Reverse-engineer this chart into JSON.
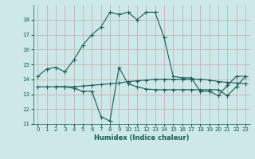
{
  "xlabel": "Humidex (Indice chaleur)",
  "bg_color": "#cce8e8",
  "grid_color": "#aacccc",
  "line_color": "#1a5c50",
  "xlim": [
    -0.5,
    23.5
  ],
  "ylim": [
    11,
    19
  ],
  "yticks": [
    11,
    12,
    13,
    14,
    15,
    16,
    17,
    18
  ],
  "xticks": [
    0,
    1,
    2,
    3,
    4,
    5,
    6,
    7,
    8,
    9,
    10,
    11,
    12,
    13,
    14,
    15,
    16,
    17,
    18,
    19,
    20,
    21,
    22,
    23
  ],
  "series1_x": [
    0,
    1,
    2,
    3,
    4,
    5,
    6,
    7,
    8,
    9,
    10,
    11,
    12,
    13,
    14,
    15,
    16,
    17,
    18,
    19,
    20,
    21,
    22,
    23
  ],
  "series1_y": [
    14.2,
    14.7,
    14.8,
    14.5,
    15.3,
    16.3,
    17.0,
    17.5,
    18.5,
    18.35,
    18.5,
    18.0,
    18.5,
    18.5,
    16.8,
    14.2,
    14.1,
    14.1,
    13.2,
    13.2,
    12.9,
    13.6,
    14.2,
    14.2
  ],
  "series2_x": [
    0,
    1,
    2,
    3,
    4,
    5,
    6,
    7,
    8,
    9,
    10,
    11,
    12,
    13,
    14,
    15,
    16,
    17,
    18,
    19,
    20,
    21,
    22,
    23
  ],
  "series2_y": [
    13.5,
    13.5,
    13.5,
    13.5,
    13.5,
    13.55,
    13.6,
    13.65,
    13.7,
    13.75,
    13.85,
    13.9,
    13.95,
    14.0,
    14.0,
    14.0,
    14.0,
    14.0,
    14.0,
    13.95,
    13.85,
    13.8,
    13.75,
    13.7
  ],
  "series3_x": [
    2,
    3,
    4,
    5,
    6,
    7,
    8,
    9,
    10,
    11,
    12,
    13,
    14,
    15,
    16,
    17,
    18,
    19,
    20,
    21,
    22,
    23
  ],
  "series3_y": [
    13.5,
    13.5,
    13.4,
    13.2,
    13.2,
    11.5,
    11.2,
    14.8,
    13.7,
    13.5,
    13.35,
    13.3,
    13.3,
    13.3,
    13.3,
    13.3,
    13.3,
    13.3,
    13.3,
    12.9,
    13.5,
    14.2
  ]
}
